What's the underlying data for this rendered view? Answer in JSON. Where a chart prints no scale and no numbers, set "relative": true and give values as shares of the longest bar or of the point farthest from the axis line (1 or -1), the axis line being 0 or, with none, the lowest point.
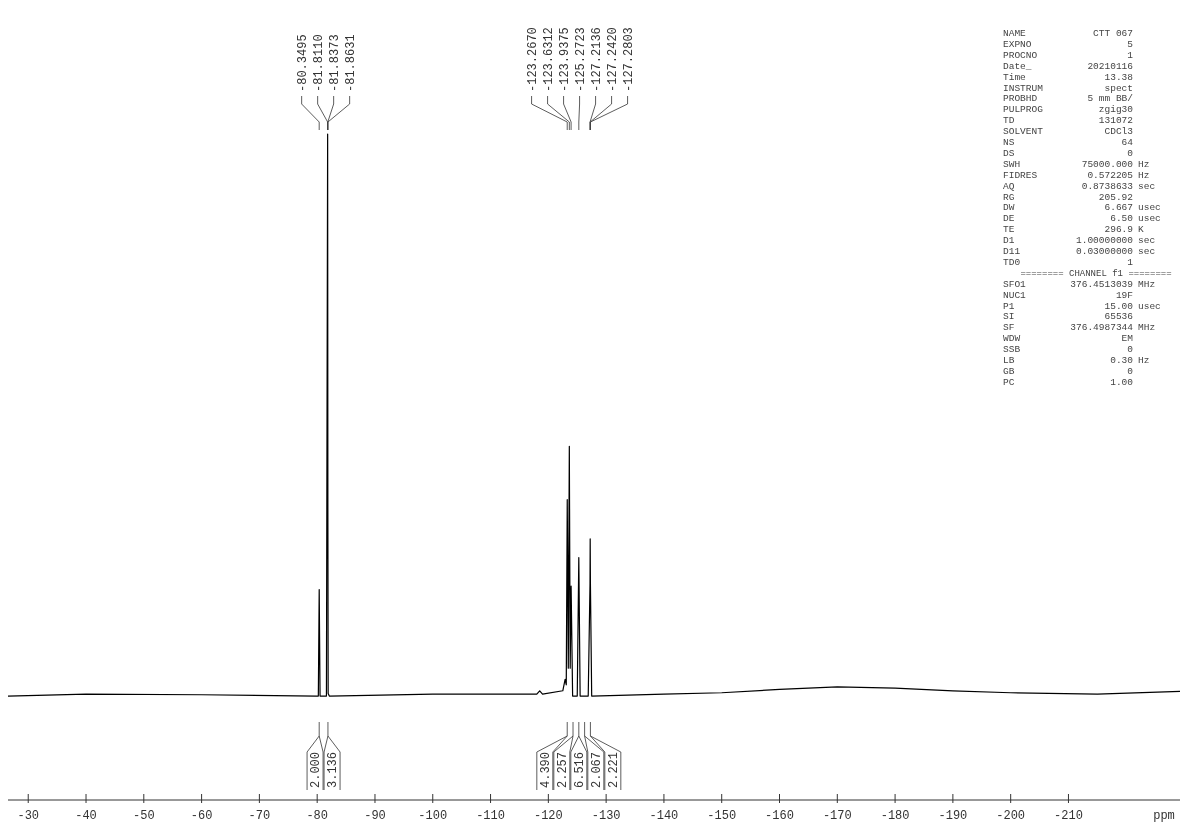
{
  "chart_data": {
    "type": "line",
    "relative": true,
    "xlabel": "ppm",
    "xlim": [
      -26.5,
      -229.3
    ],
    "xticks": [
      -30,
      -40,
      -50,
      -60,
      -70,
      -80,
      -90,
      -100,
      -110,
      -120,
      -130,
      -140,
      -150,
      -160,
      -170,
      -180,
      -190,
      -200,
      -210
    ],
    "series": [
      {
        "color": "#000000",
        "x": [
          -26.5,
          -40,
          -60,
          -79.9,
          -80.2,
          -80.35,
          -80.5,
          -81.6,
          -81.81,
          -81.85,
          -81.9,
          -82.1,
          -100,
          -118,
          -118.5,
          -119,
          -122.5,
          -122.9,
          -123.1,
          -123.27,
          -123.45,
          -123.63,
          -123.78,
          -123.94,
          -124.2,
          -125.0,
          -125.27,
          -125.5,
          -126.9,
          -127.21,
          -127.24,
          -127.28,
          -127.5,
          -140,
          -150,
          -160,
          -170,
          -180,
          -190,
          -200,
          -215,
          -229.3
        ],
        "values": [
          0.156,
          0.159,
          0.158,
          0.156,
          0.156,
          0.316,
          0.156,
          0.156,
          1.0,
          0.435,
          0.16,
          0.156,
          0.159,
          0.159,
          0.164,
          0.159,
          0.164,
          0.181,
          0.173,
          0.451,
          0.198,
          0.531,
          0.198,
          0.321,
          0.156,
          0.156,
          0.364,
          0.156,
          0.156,
          0.325,
          0.392,
          0.325,
          0.156,
          0.159,
          0.161,
          0.166,
          0.17,
          0.168,
          0.164,
          0.161,
          0.159,
          0.163
        ]
      }
    ],
    "annotations": [
      "-80.3495",
      "-81.8110",
      "-81.8373",
      "-81.8631",
      "-123.2670",
      "-123.6312",
      "-123.9375",
      "-125.2723",
      "-127.2136",
      "-127.2420",
      "-127.2803",
      "2.000",
      "3.136",
      "4.390",
      "2.257",
      "6.516",
      "2.067",
      "2.221",
      "NAME  CTT 067",
      "EXPNO  5",
      "PROCNO  1",
      "Date_  20210116",
      "Time  13.38",
      "INSTRUM  spect",
      "PROBHD  5 mm BB/",
      "PULPROG  zgig30",
      "TD  131072",
      "SOLVENT  CDCl3",
      "NS  64",
      "DS  0",
      "SWH  75000.000  Hz",
      "FIDRES  0.572205  Hz",
      "AQ  0.8738633  sec",
      "RG  205.92",
      "DW  6.667  usec",
      "DE  6.50  usec",
      "TE  296.9  K",
      "D1  1.00000000  sec",
      "D11  0.03000000  sec",
      "TD0  1",
      "======== CHANNEL f1 ========",
      "SFO1  376.4513039  MHz",
      "NUC1  19F",
      "P1  15.00  usec",
      "SI  65536",
      "SF  376.4987344  MHz",
      "WDW  EM",
      "SSB  0",
      "LB  0.30  Hz",
      "GB  0",
      "PC  1.00"
    ]
  }
}
